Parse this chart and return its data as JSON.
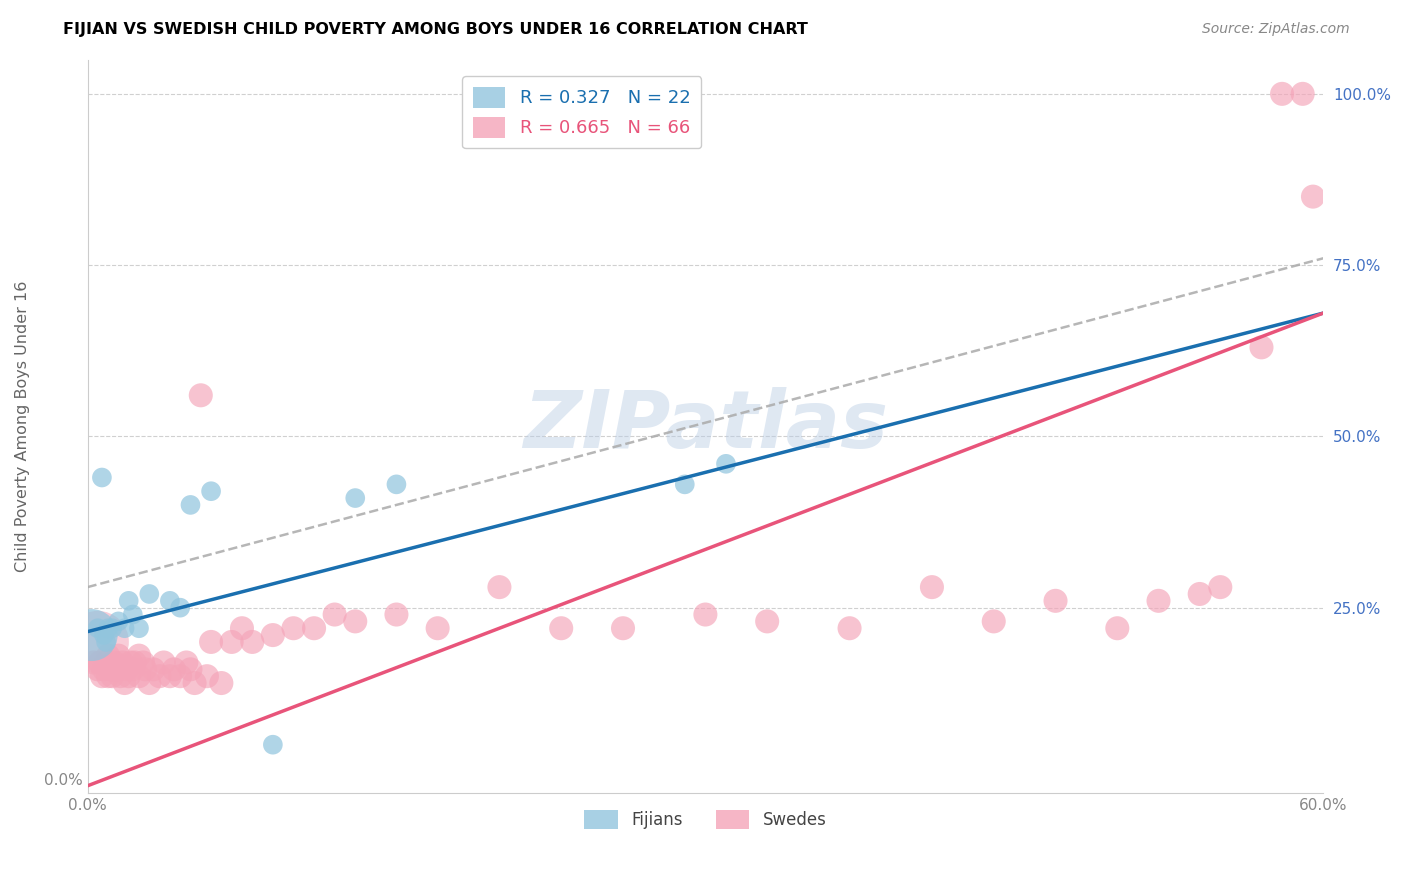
{
  "title": "FIJIAN VS SWEDISH CHILD POVERTY AMONG BOYS UNDER 16 CORRELATION CHART",
  "source": "Source: ZipAtlas.com",
  "ylabel": "Child Poverty Among Boys Under 16",
  "x_min": 0.0,
  "x_max": 0.6,
  "y_min": -0.02,
  "y_max": 1.05,
  "fijian_color": "#92c5de",
  "swede_color": "#f4a4b8",
  "trend_fijian_color": "#1a6faf",
  "trend_swede_color": "#e8547a",
  "watermark_color": "#b8cce4",
  "fijians_x": [
    0.002,
    0.005,
    0.007,
    0.008,
    0.009,
    0.01,
    0.012,
    0.015,
    0.018,
    0.02,
    0.022,
    0.025,
    0.03,
    0.04,
    0.045,
    0.05,
    0.06,
    0.09,
    0.13,
    0.15,
    0.29,
    0.31
  ],
  "fijians_y": [
    0.21,
    0.22,
    0.44,
    0.21,
    0.2,
    0.22,
    0.22,
    0.23,
    0.22,
    0.26,
    0.24,
    0.22,
    0.27,
    0.26,
    0.25,
    0.4,
    0.42,
    0.05,
    0.41,
    0.43,
    0.43,
    0.46
  ],
  "fijians_size_base": 200,
  "fijians_large_idx": 0,
  "fijians_large_size": 1400,
  "swedes_x": [
    0.003,
    0.005,
    0.006,
    0.007,
    0.008,
    0.009,
    0.01,
    0.01,
    0.011,
    0.012,
    0.013,
    0.014,
    0.015,
    0.016,
    0.017,
    0.018,
    0.019,
    0.02,
    0.021,
    0.022,
    0.023,
    0.025,
    0.025,
    0.027,
    0.028,
    0.03,
    0.032,
    0.035,
    0.037,
    0.04,
    0.042,
    0.045,
    0.048,
    0.05,
    0.052,
    0.055,
    0.058,
    0.06,
    0.065,
    0.07,
    0.075,
    0.08,
    0.09,
    0.1,
    0.11,
    0.12,
    0.13,
    0.15,
    0.17,
    0.2,
    0.23,
    0.26,
    0.3,
    0.33,
    0.37,
    0.41,
    0.44,
    0.47,
    0.5,
    0.52,
    0.54,
    0.55,
    0.57,
    0.58,
    0.59,
    0.595
  ],
  "swedes_y": [
    0.17,
    0.16,
    0.17,
    0.15,
    0.16,
    0.17,
    0.18,
    0.15,
    0.16,
    0.15,
    0.17,
    0.16,
    0.18,
    0.15,
    0.17,
    0.14,
    0.16,
    0.15,
    0.17,
    0.16,
    0.17,
    0.18,
    0.15,
    0.17,
    0.16,
    0.14,
    0.16,
    0.15,
    0.17,
    0.15,
    0.16,
    0.15,
    0.17,
    0.16,
    0.14,
    0.56,
    0.15,
    0.2,
    0.14,
    0.2,
    0.22,
    0.2,
    0.21,
    0.22,
    0.22,
    0.24,
    0.23,
    0.24,
    0.22,
    0.28,
    0.22,
    0.22,
    0.24,
    0.23,
    0.22,
    0.28,
    0.23,
    0.26,
    0.22,
    0.26,
    0.27,
    0.28,
    0.63,
    1.0,
    1.0,
    0.85
  ],
  "swedes_size_base": 300,
  "swede_large_x": [
    0.005
  ],
  "swede_large_y": [
    0.2
  ],
  "swede_large_size": [
    2000
  ],
  "trend_fij_x0": 0.0,
  "trend_fij_y0": 0.215,
  "trend_fij_x1": 0.6,
  "trend_fij_y1": 0.68,
  "trend_sw_x0": 0.0,
  "trend_sw_y0": -0.01,
  "trend_sw_x1": 0.6,
  "trend_sw_y1": 0.68,
  "trend_dash_x0": 0.0,
  "trend_dash_y0": 0.28,
  "trend_dash_x1": 0.6,
  "trend_dash_y1": 0.76
}
